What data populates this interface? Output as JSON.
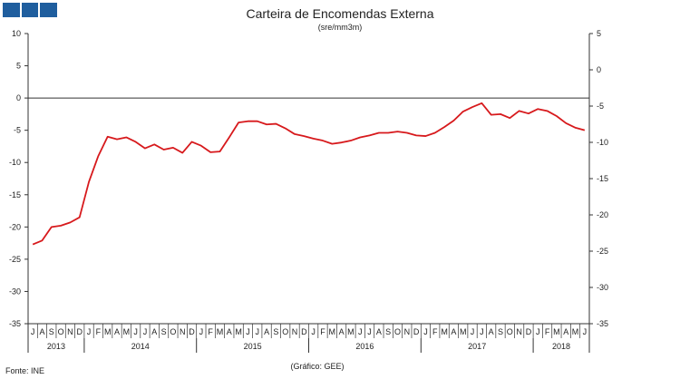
{
  "header": {
    "title": "Carteira de Encomendas Externa",
    "subtitle": "(sre/mm3m)"
  },
  "footer": {
    "source": "Fonte: INE",
    "credit": "(Gráfico: GEE)"
  },
  "colors": {
    "series": "#d7191c",
    "axis": "#333333",
    "logo": "#1f5e9e"
  },
  "chart_data": {
    "type": "line",
    "title": "Carteira de Encomendas Externa",
    "subtitle": "(sre/mm3m)",
    "y_left": {
      "range": [
        -35,
        10
      ],
      "ticks": [
        "10",
        "5",
        "0",
        "-5",
        "-10",
        "-15",
        "-20",
        "-25",
        "-30",
        "-35"
      ]
    },
    "y_right": {
      "range": [
        -35,
        5
      ],
      "ticks": [
        "5",
        "0",
        "-5",
        "-10",
        "-15",
        "-20",
        "-25",
        "-30",
        "-35"
      ]
    },
    "grid": false,
    "legend": "none",
    "month_labels": [
      "J",
      "A",
      "S",
      "O",
      "N",
      "D",
      "J",
      "F",
      "M",
      "A",
      "M",
      "J",
      "J",
      "A",
      "S",
      "O",
      "N",
      "D",
      "J",
      "F",
      "M",
      "A",
      "M",
      "J",
      "J",
      "A",
      "S",
      "O",
      "N",
      "D",
      "J",
      "F",
      "M",
      "A",
      "M",
      "J",
      "J",
      "A",
      "S",
      "O",
      "N",
      "D",
      "J",
      "F",
      "M",
      "A",
      "M",
      "J",
      "J",
      "A",
      "S",
      "O",
      "N",
      "D",
      "J",
      "F",
      "M",
      "A",
      "M",
      "J"
    ],
    "years": [
      {
        "label": "2013",
        "start": 0,
        "months": 6
      },
      {
        "label": "2014",
        "start": 6,
        "months": 12
      },
      {
        "label": "2015",
        "start": 18,
        "months": 12
      },
      {
        "label": "2016",
        "start": 30,
        "months": 12
      },
      {
        "label": "2017",
        "start": 42,
        "months": 12
      },
      {
        "label": "2018",
        "start": 54,
        "months": 6
      }
    ],
    "series": [
      {
        "axis": "left",
        "x": [
          "2013-07",
          "2013-08",
          "2013-09",
          "2013-10",
          "2013-11",
          "2013-12",
          "2014-01",
          "2014-02",
          "2014-03",
          "2014-04",
          "2014-05",
          "2014-06",
          "2014-07",
          "2014-08",
          "2014-09",
          "2014-10",
          "2014-11",
          "2014-12",
          "2015-01",
          "2015-02",
          "2015-03",
          "2015-04",
          "2015-05",
          "2015-06",
          "2015-07",
          "2015-08",
          "2015-09",
          "2015-10",
          "2015-11",
          "2015-12",
          "2016-01",
          "2016-02",
          "2016-03",
          "2016-04",
          "2016-05",
          "2016-06",
          "2016-07",
          "2016-08",
          "2016-09",
          "2016-10",
          "2016-11",
          "2016-12",
          "2017-01",
          "2017-02",
          "2017-03",
          "2017-04",
          "2017-05",
          "2017-06",
          "2017-07",
          "2017-08",
          "2017-09",
          "2017-10",
          "2017-11",
          "2017-12",
          "2018-01",
          "2018-02",
          "2018-03",
          "2018-04",
          "2018-05",
          "2018-06"
        ],
        "values": [
          -22.7,
          -22.1,
          -20.0,
          -19.8,
          -19.3,
          -18.5,
          -13.0,
          -9.0,
          -6.0,
          -6.4,
          -6.1,
          -6.8,
          -7.8,
          -7.2,
          -8.0,
          -7.7,
          -8.5,
          -6.8,
          -7.4,
          -8.4,
          -8.3,
          -6.1,
          -3.8,
          -3.6,
          -3.6,
          -4.1,
          -4.0,
          -4.7,
          -5.6,
          -5.9,
          -6.3,
          -6.6,
          -7.1,
          -6.9,
          -6.6,
          -6.1,
          -5.8,
          -5.4,
          -5.4,
          -5.2,
          -5.4,
          -5.8,
          -5.9,
          -5.4,
          -4.5,
          -3.5,
          -2.1,
          -1.4,
          -0.8,
          -2.6,
          -2.5,
          -3.1,
          -2.0,
          -2.4,
          -1.7,
          -2.0,
          -2.8,
          -3.9,
          -4.6,
          -5.0
        ]
      }
    ]
  }
}
